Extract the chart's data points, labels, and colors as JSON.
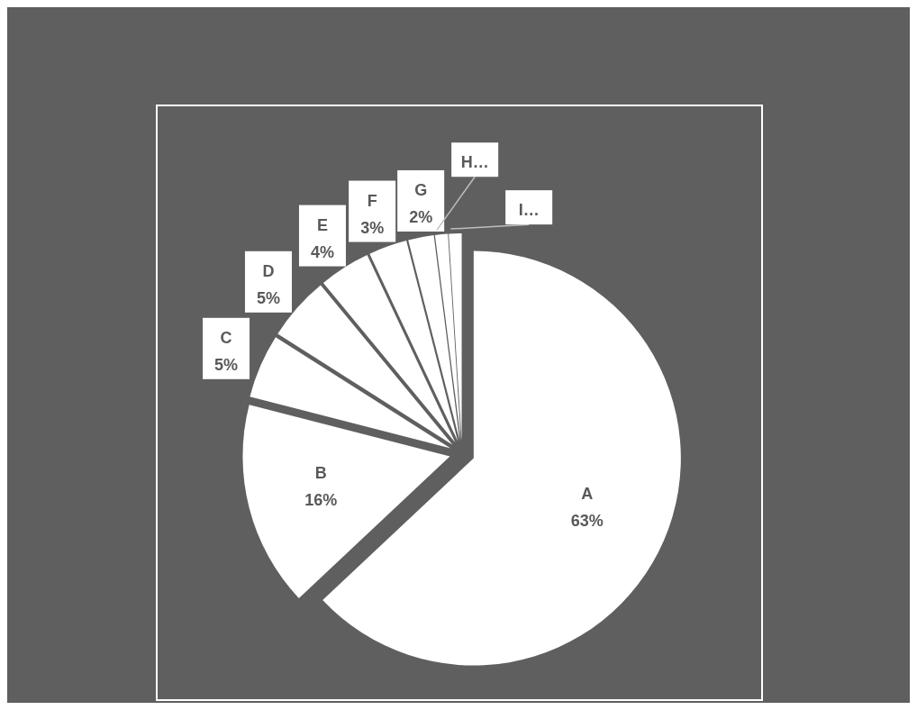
{
  "chart_data": {
    "type": "pie",
    "categories": [
      "A",
      "B",
      "C",
      "D",
      "E",
      "F",
      "G",
      "H…",
      "I…"
    ],
    "values": [
      63,
      16,
      5,
      5,
      4,
      3,
      2,
      1,
      1
    ],
    "colors": [
      "#ffffff",
      "#ffffff",
      "#ffffff",
      "#ffffff",
      "#ffffff",
      "#ffffff",
      "#ffffff",
      "#ffffff",
      "#ffffff"
    ],
    "value_labels": [
      "63%",
      "16%",
      "5%",
      "5%",
      "4%",
      "3%",
      "2%",
      null,
      null
    ]
  }
}
